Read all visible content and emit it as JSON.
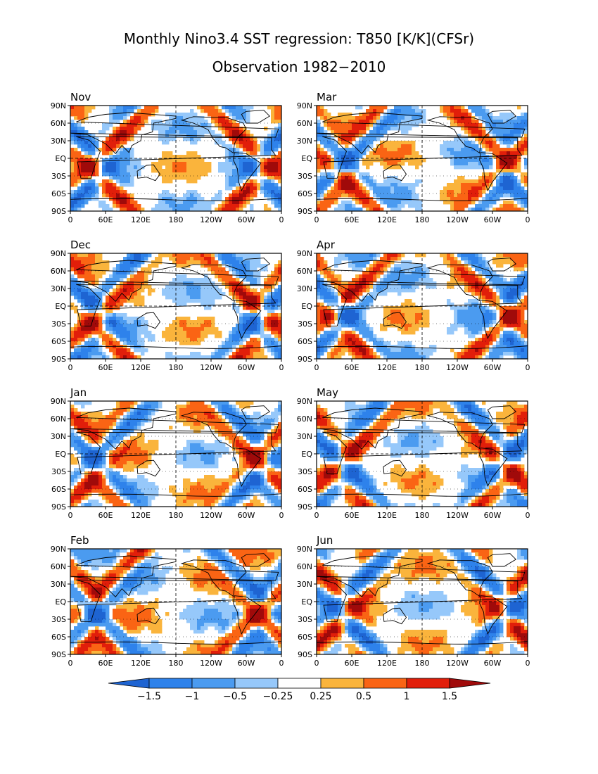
{
  "title": "Monthly Nino3.4 SST regression: T850 [K/K](CFSr)",
  "subtitle": "Observation 1982−2010",
  "colors": {
    "neg_extreme": "#1e64d2",
    "neg_1_5": "#2e82eb",
    "neg_1": "#4b9bf0",
    "neg_0_5": "#96c8fa",
    "neutral": "#ffffff",
    "pos_0_25": "#fab43c",
    "pos_0_5": "#fa6414",
    "pos_1": "#e11e0a",
    "pos_extreme": "#a00a0a"
  },
  "chart_data": {
    "type": "heatmap",
    "variable": "T850 regression on Nino3.4 SST",
    "units": "K/K",
    "panels": [
      {
        "label": "Nov"
      },
      {
        "label": "Mar"
      },
      {
        "label": "Dec"
      },
      {
        "label": "Apr"
      },
      {
        "label": "Jan"
      },
      {
        "label": "May"
      },
      {
        "label": "Feb"
      },
      {
        "label": "Jun"
      }
    ],
    "x_ticks": [
      "0",
      "60E",
      "120E",
      "180",
      "120W",
      "60W",
      "0"
    ],
    "y_ticks": [
      "90N",
      "60N",
      "30N",
      "EQ",
      "30S",
      "60S",
      "90S"
    ],
    "colorbar": {
      "levels": [
        -1.5,
        -1,
        -0.5,
        -0.25,
        0.25,
        0.5,
        1,
        1.5
      ],
      "labels": [
        "−1.5",
        "−1",
        "−0.5",
        "−0.25",
        "0.25",
        "0.5",
        "1",
        "1.5"
      ],
      "fill_keys": [
        "neg_1_5",
        "neg_1",
        "neg_0_5",
        "neutral",
        "pos_0_25",
        "pos_0_5",
        "pos_1"
      ]
    }
  }
}
